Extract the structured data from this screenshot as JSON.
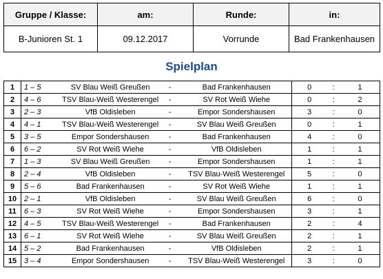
{
  "header": {
    "labels": [
      "Gruppe / Klasse:",
      "am:",
      "Runde:",
      "in:"
    ],
    "values": [
      "B-Junioren St. 1",
      "09.12.2017",
      "Vorrunde",
      "Bad Frankenhausen"
    ]
  },
  "title": "Spielplan",
  "separator_dash": "-",
  "separator_colon": ":",
  "matches": [
    {
      "nr": "1",
      "pair": "1 – 5",
      "home": "SV Blau Weiß Greußen",
      "away": "Bad Frankenhausen",
      "h": "0",
      "a": "1"
    },
    {
      "nr": "2",
      "pair": "4 – 6",
      "home": "TSV Blau-Weiß Westerengel",
      "away": "SV Rot Weiß Wiehe",
      "h": "0",
      "a": "2"
    },
    {
      "nr": "3",
      "pair": "2 – 3",
      "home": "VfB Oldisleben",
      "away": "Empor Sondershausen",
      "h": "3",
      "a": "0"
    },
    {
      "nr": "4",
      "pair": "4 – 1",
      "home": "TSV Blau-Weiß Westerengel",
      "away": "SV Blau Weiß Greußen",
      "h": "0",
      "a": "1"
    },
    {
      "nr": "5",
      "pair": "3 – 5",
      "home": "Empor Sondershausen",
      "away": "Bad Frankenhausen",
      "h": "4",
      "a": "0"
    },
    {
      "nr": "6",
      "pair": "6 – 2",
      "home": "SV Rot Weiß Wiehe",
      "away": "VfB Oldisleben",
      "h": "1",
      "a": "1"
    },
    {
      "nr": "7",
      "pair": "1 – 3",
      "home": "SV Blau Weiß Greußen",
      "away": "Empor Sondershausen",
      "h": "1",
      "a": "1"
    },
    {
      "nr": "8",
      "pair": "2 – 4",
      "home": "VfB Oldisleben",
      "away": "TSV Blau-Weiß Westerengel",
      "h": "5",
      "a": "0"
    },
    {
      "nr": "9",
      "pair": "5 – 6",
      "home": "Bad Frankenhausen",
      "away": "SV Rot Weiß Wiehe",
      "h": "1",
      "a": "1"
    },
    {
      "nr": "10",
      "pair": "2 – 1",
      "home": "VfB Oldisleben",
      "away": "SV Blau Weiß Greußen",
      "h": "6",
      "a": "0"
    },
    {
      "nr": "11",
      "pair": "6 – 3",
      "home": "SV Rot Weiß Wiehe",
      "away": "Empor Sondershausen",
      "h": "3",
      "a": "1"
    },
    {
      "nr": "12",
      "pair": "4 – 5",
      "home": "TSV Blau-Weiß Westerengel",
      "away": "Bad Frankenhausen",
      "h": "2",
      "a": "4"
    },
    {
      "nr": "13",
      "pair": "6 – 1",
      "home": "SV Rot Weiß Wiehe",
      "away": "SV Blau Weiß Greußen",
      "h": "2",
      "a": "1"
    },
    {
      "nr": "14",
      "pair": "5 – 2",
      "home": "Bad Frankenhausen",
      "away": "VfB Oldisleben",
      "h": "2",
      "a": "1"
    },
    {
      "nr": "15",
      "pair": "3 – 4",
      "home": "Empor Sondershausen",
      "away": "TSV Blau-Weiß Westerengel",
      "h": "3",
      "a": "0"
    }
  ]
}
